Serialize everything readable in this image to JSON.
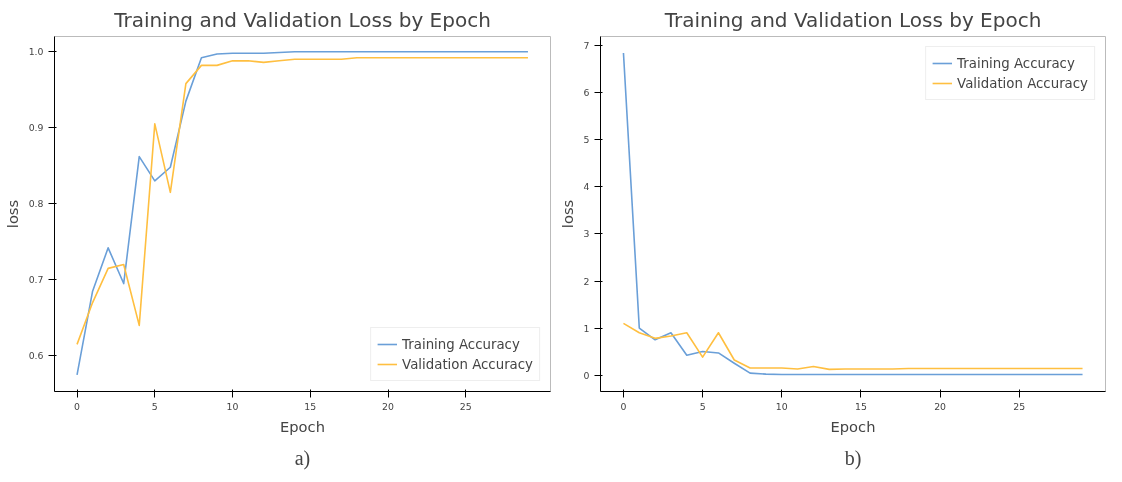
{
  "chart_data": [
    {
      "type": "line",
      "title": "Training and Validation Loss by Epoch",
      "xlabel": "Epoch",
      "ylabel": "loss",
      "x": [
        0,
        1,
        2,
        3,
        4,
        5,
        6,
        7,
        8,
        9,
        10,
        11,
        12,
        13,
        14,
        15,
        16,
        17,
        18,
        19,
        20,
        21,
        22,
        23,
        24,
        25,
        26,
        27,
        28,
        29
      ],
      "xlim": [
        -1.45,
        30.45
      ],
      "xticks": [
        0,
        5,
        10,
        15,
        20,
        25
      ],
      "ylim": [
        0.553,
        1.02
      ],
      "yticks": [
        0.6,
        0.7,
        0.8,
        0.9,
        {
          "value": 1.0,
          "label": "1.0"
        }
      ],
      "grid": false,
      "legend": "bottom right",
      "annotations": [
        "a)"
      ],
      "series": [
        {
          "name": "Training Accuracy",
          "color": "#6a9fd8",
          "values": [
            0.575,
            0.685,
            0.742,
            0.695,
            0.862,
            0.83,
            0.848,
            0.935,
            0.992,
            0.997,
            0.998,
            0.998,
            0.998,
            0.999,
            1.0,
            1.0,
            1.0,
            1.0,
            1.0,
            1.0,
            1.0,
            1.0,
            1.0,
            1.0,
            1.0,
            1.0,
            1.0,
            1.0,
            1.0,
            1.0
          ]
        },
        {
          "name": "Validation Accuracy",
          "color": "#ffbf40",
          "values": [
            0.615,
            0.67,
            0.715,
            0.72,
            0.64,
            0.905,
            0.815,
            0.958,
            0.982,
            0.982,
            0.988,
            0.988,
            0.986,
            0.988,
            0.99,
            0.99,
            0.99,
            0.99,
            0.992,
            0.992,
            0.992,
            0.992,
            0.992,
            0.992,
            0.992,
            0.992,
            0.992,
            0.992,
            0.992,
            0.992
          ]
        }
      ]
    },
    {
      "type": "line",
      "title": "Training and Validation Loss by Epoch",
      "xlabel": "Epoch",
      "ylabel": "loss",
      "x": [
        0,
        1,
        2,
        3,
        4,
        5,
        6,
        7,
        8,
        9,
        10,
        11,
        12,
        13,
        14,
        15,
        16,
        17,
        18,
        19,
        20,
        21,
        22,
        23,
        24,
        25,
        26,
        27,
        28,
        29
      ],
      "xlim": [
        -1.45,
        30.45
      ],
      "xticks": [
        0,
        5,
        10,
        15,
        20,
        25
      ],
      "ylim": [
        -0.35,
        7.2
      ],
      "yticks": [
        0,
        1,
        2,
        3,
        4,
        5,
        6,
        7
      ],
      "grid": false,
      "legend": "top right",
      "annotations": [
        "b)"
      ],
      "series": [
        {
          "name": "Training Accuracy",
          "color": "#6a9fd8",
          "values": [
            6.85,
            1.0,
            0.75,
            0.9,
            0.42,
            0.5,
            0.47,
            0.25,
            0.04,
            0.02,
            0.01,
            0.01,
            0.01,
            0.01,
            0.01,
            0.01,
            0.01,
            0.01,
            0.01,
            0.01,
            0.01,
            0.01,
            0.01,
            0.01,
            0.01,
            0.01,
            0.01,
            0.01,
            0.01,
            0.01
          ]
        },
        {
          "name": "Validation Accuracy",
          "color": "#ffbf40",
          "values": [
            1.1,
            0.9,
            0.78,
            0.83,
            0.9,
            0.38,
            0.9,
            0.32,
            0.15,
            0.15,
            0.15,
            0.13,
            0.18,
            0.12,
            0.13,
            0.13,
            0.13,
            0.13,
            0.14,
            0.14,
            0.14,
            0.14,
            0.14,
            0.14,
            0.14,
            0.14,
            0.14,
            0.14,
            0.14,
            0.14
          ]
        }
      ]
    }
  ]
}
